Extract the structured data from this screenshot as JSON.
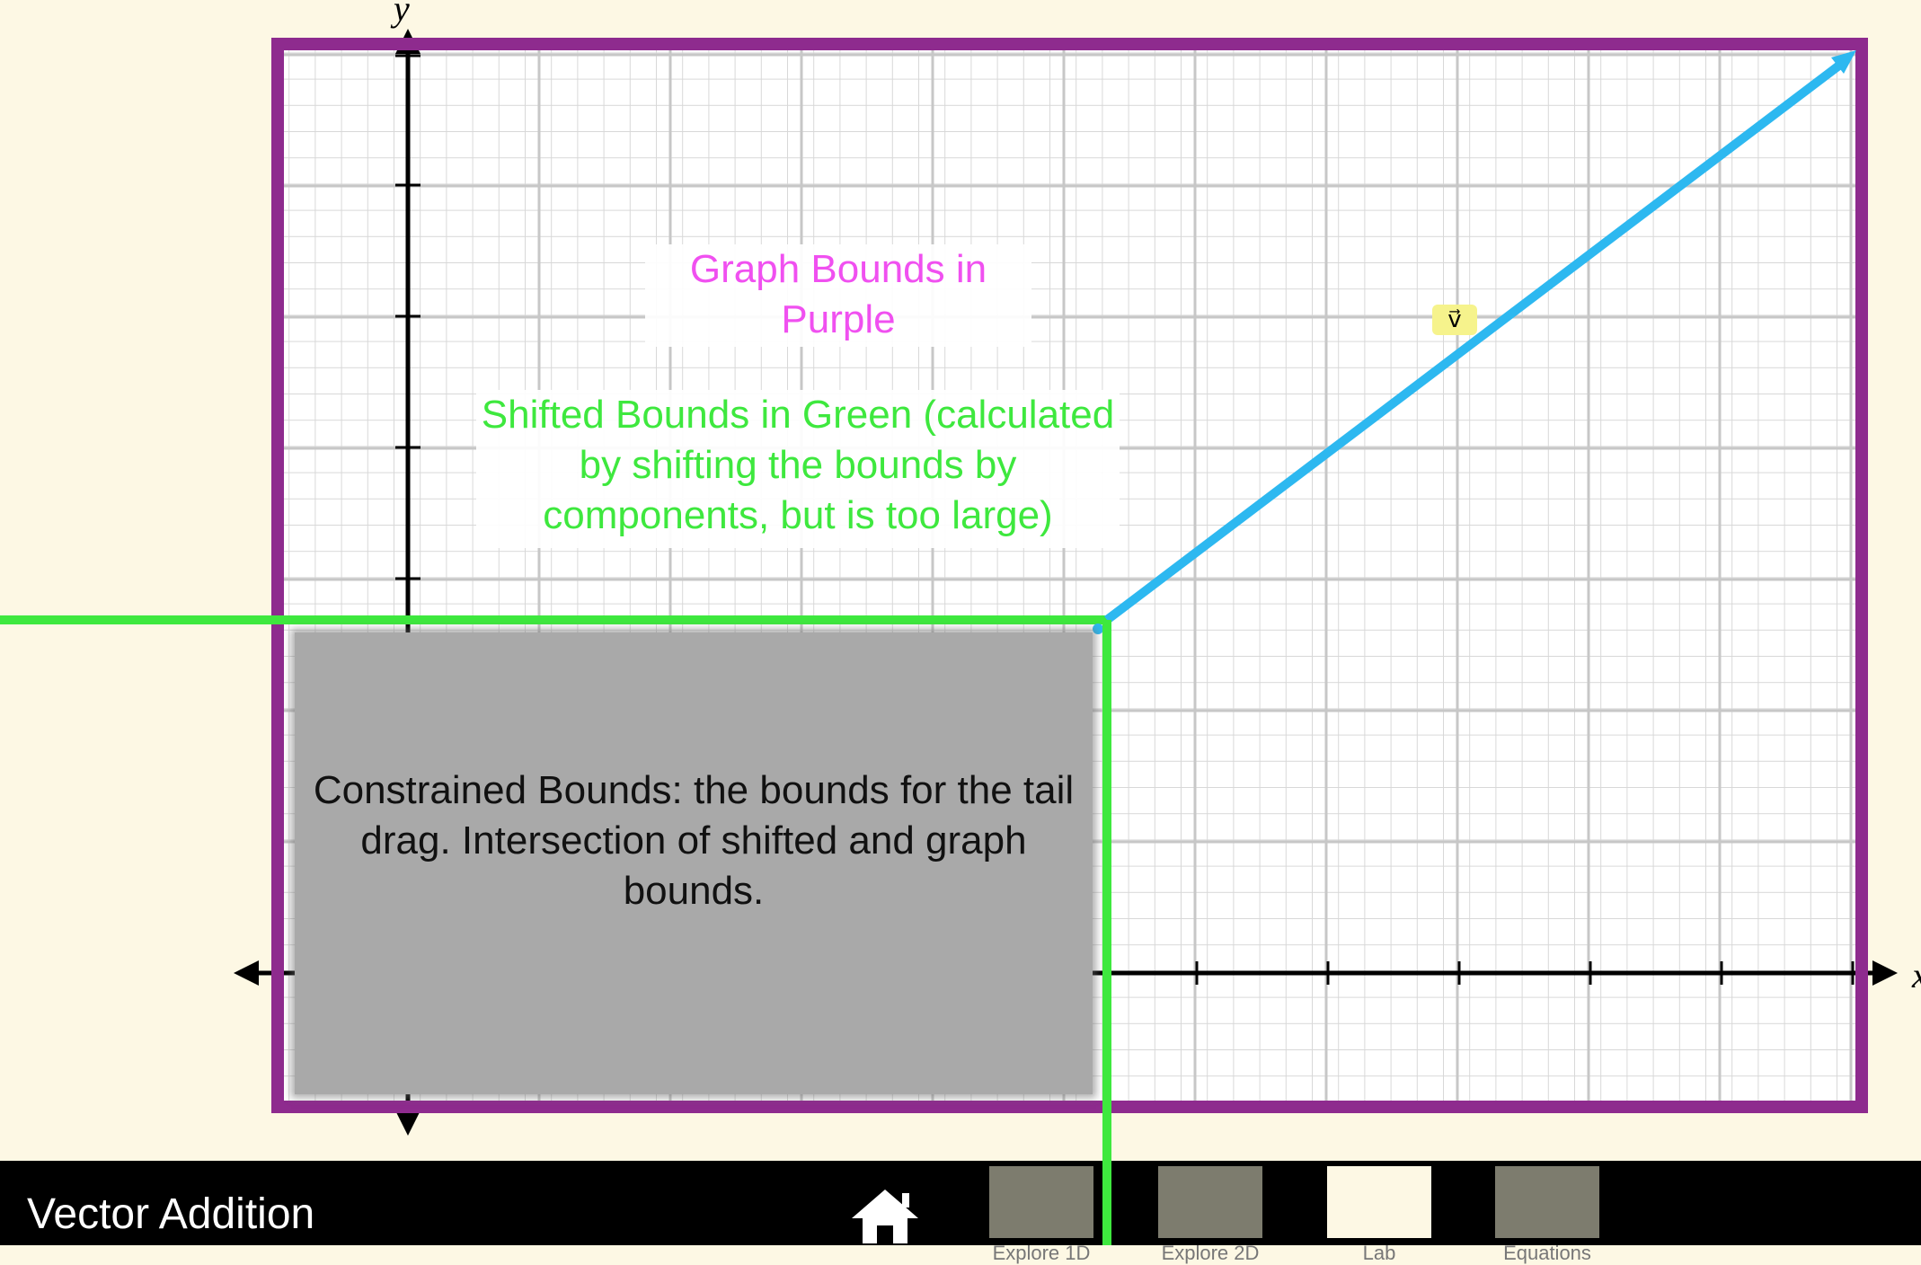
{
  "axes": {
    "x_label": "x",
    "y_label": "y"
  },
  "vector": {
    "label": "v⃗",
    "color": "#2db8f0"
  },
  "annotations": {
    "graph_bounds": "Graph Bounds in Purple",
    "shifted_bounds": "Shifted Bounds in Green (calculated by shifting the bounds by components, but is too large)",
    "constrained_bounds": "Constrained Bounds: the bounds for the tail drag. Intersection of shifted and graph bounds."
  },
  "colors": {
    "graph_bounds": "#8e2b8e",
    "shifted_bounds": "#3ee83e",
    "constrained_bounds": "#a9a9a9",
    "background": "#fdf8e4"
  },
  "navbar": {
    "title": "Vector Addition",
    "home_icon": "home-icon",
    "screens": [
      {
        "label": "Explore 1D",
        "selected": false
      },
      {
        "label": "Explore 2D",
        "selected": false
      },
      {
        "label": "Lab",
        "selected": true
      },
      {
        "label": "Equations",
        "selected": false
      }
    ]
  }
}
